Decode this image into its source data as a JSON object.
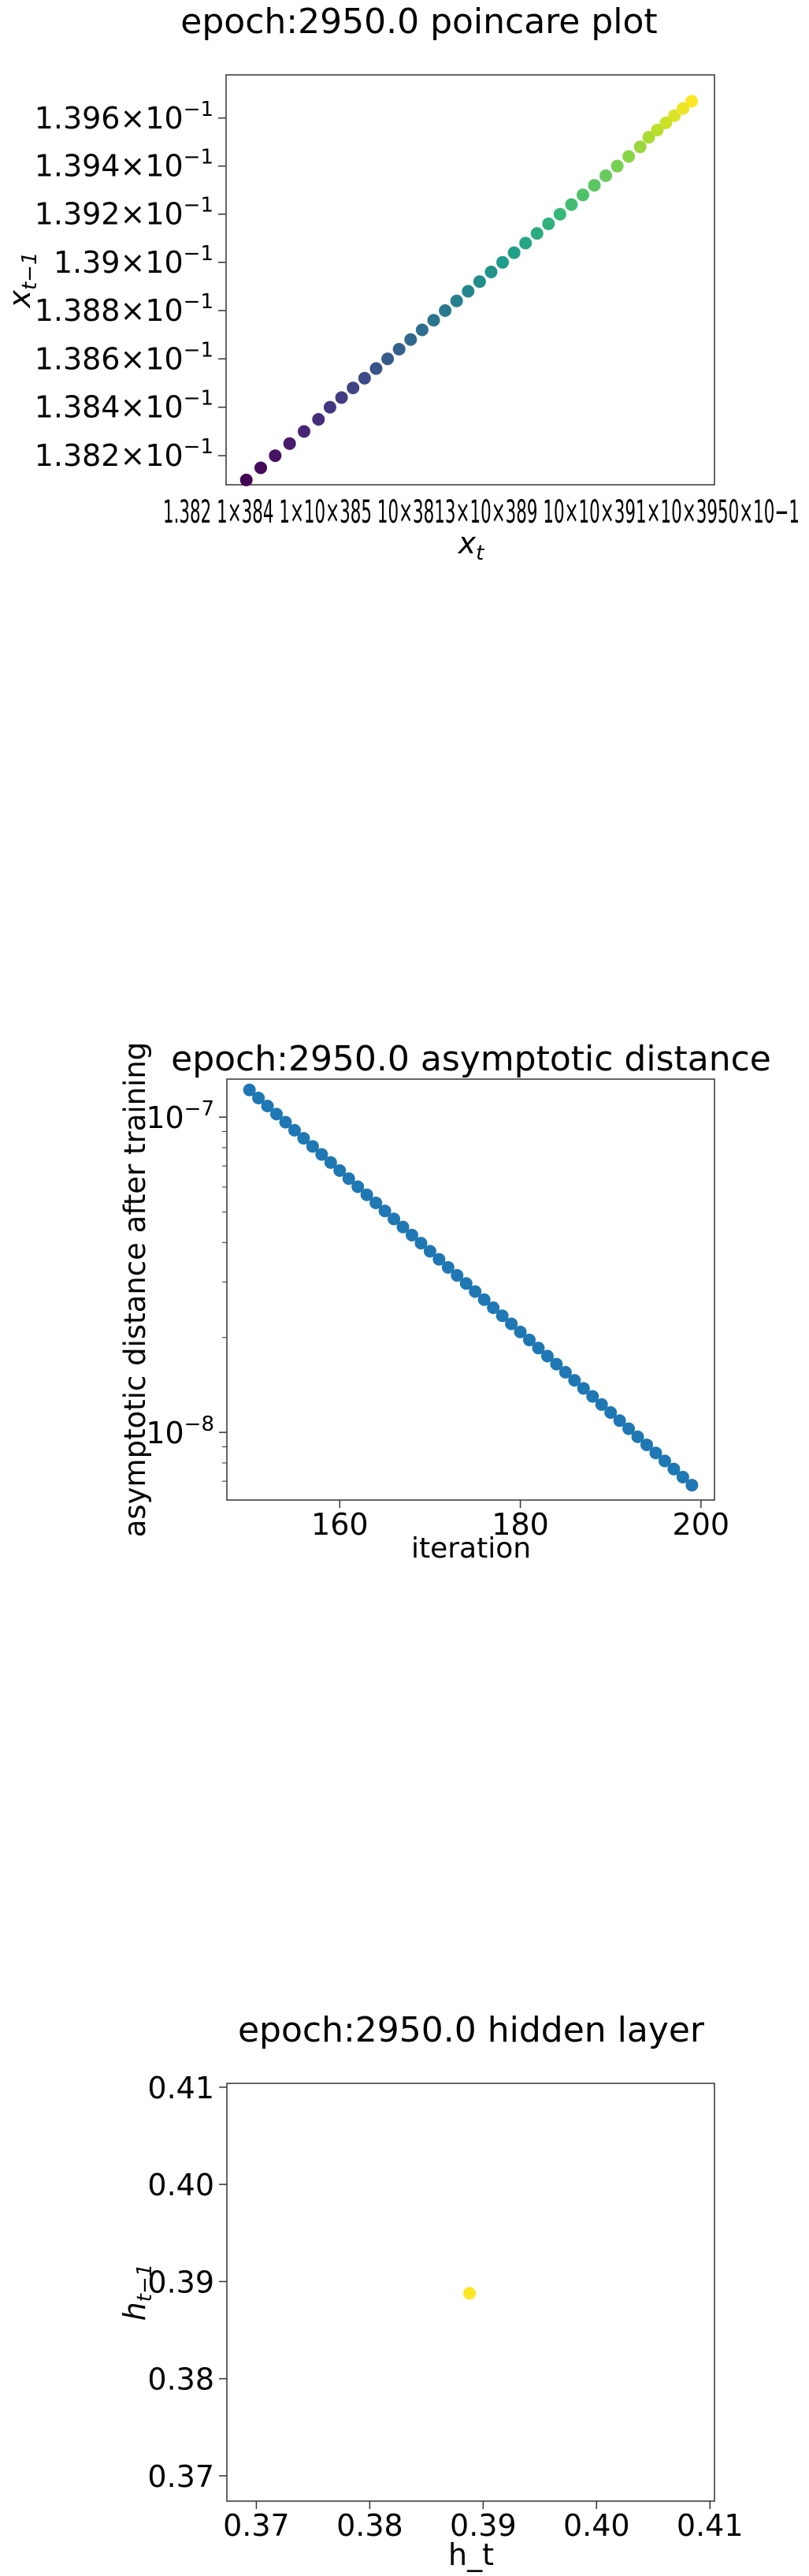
{
  "chart_data": [
    {
      "type": "scatter",
      "title": "epoch:2950.0 poincare plot",
      "xlabel_base": "x",
      "xlabel_sub": "t",
      "ylabel_base": "x",
      "ylabel_sub": "t−1",
      "xscale": "log",
      "yscale": "log",
      "xlim": [
        0.13808,
        0.13978
      ],
      "ylim": [
        0.13808,
        0.13978
      ],
      "colormap": "viridis",
      "ytick_labels": [
        {
          "mant": "1.396",
          "val": 0.1396
        },
        {
          "mant": "1.394",
          "val": 0.1394
        },
        {
          "mant": "1.392",
          "val": 0.1392
        },
        {
          "mant": "1.39",
          "val": 0.139
        },
        {
          "mant": "1.388",
          "val": 0.1388
        },
        {
          "mant": "1.386",
          "val": 0.1386
        },
        {
          "mant": "1.384",
          "val": 0.1384
        },
        {
          "mant": "1.382",
          "val": 0.1382
        }
      ],
      "ytick_suffix_base": "×10",
      "ytick_suffix_exp": "−1",
      "xtick_overlap_text": "1.382 1×384 1×10×385 10×3813×10×389 10×10×391×10×3950×10−1",
      "x": [
        0.13815,
        0.1382,
        0.13825,
        0.1383,
        0.13835,
        0.1384,
        0.13844,
        0.13848,
        0.13852,
        0.13856,
        0.1386,
        0.13864,
        0.13868,
        0.13872,
        0.13876,
        0.1388,
        0.13884,
        0.13888,
        0.13892,
        0.13896,
        0.139,
        0.13904,
        0.13908,
        0.13912,
        0.13916,
        0.1392,
        0.13924,
        0.13928,
        0.13932,
        0.13936,
        0.1394,
        0.13944,
        0.13948,
        0.13952,
        0.13955,
        0.13958,
        0.13961,
        0.13964,
        0.13967,
        0.1397
      ],
      "y": [
        0.1381,
        0.13815,
        0.1382,
        0.13825,
        0.1383,
        0.13835,
        0.1384,
        0.13844,
        0.13848,
        0.13852,
        0.13856,
        0.1386,
        0.13864,
        0.13868,
        0.13872,
        0.13876,
        0.1388,
        0.13884,
        0.13888,
        0.13892,
        0.13896,
        0.139,
        0.13904,
        0.13908,
        0.13912,
        0.13916,
        0.1392,
        0.13924,
        0.13928,
        0.13932,
        0.13936,
        0.1394,
        0.13944,
        0.13948,
        0.13952,
        0.13955,
        0.13958,
        0.13961,
        0.13964,
        0.13967
      ]
    },
    {
      "type": "scatter",
      "title": "epoch:2950.0 asymptotic distance",
      "xlabel": "iteration",
      "ylabel": "asymptotic distance after training",
      "yscale": "log",
      "xlim": [
        147.5,
        201.5
      ],
      "ylim": [
        6.1e-09,
        1.32e-07
      ],
      "color": "#1f77b4",
      "xticks": [
        160,
        180,
        200
      ],
      "yticks": [
        {
          "base": "10",
          "exp": "−7",
          "val": 1e-07
        },
        {
          "base": "10",
          "exp": "−8",
          "val": 1e-08
        }
      ],
      "x_start": 150,
      "x_end": 199,
      "y_start": 1.22e-07,
      "y_end": 6.8e-09
    },
    {
      "type": "scatter",
      "title": "epoch:2950.0 hidden layer",
      "xlabel": "h_t",
      "ylabel_base": "h",
      "ylabel_sub": "t−1",
      "xlim": [
        0.3674,
        0.4104
      ],
      "ylim": [
        0.3674,
        0.4104
      ],
      "xticks": [
        "0.37",
        "0.38",
        "0.39",
        "0.40",
        "0.41"
      ],
      "yticks": [
        "0.41",
        "0.40",
        "0.39",
        "0.38",
        "0.37"
      ],
      "color": "#fde725",
      "x": [
        0.3888
      ],
      "y": [
        0.3888
      ]
    }
  ]
}
